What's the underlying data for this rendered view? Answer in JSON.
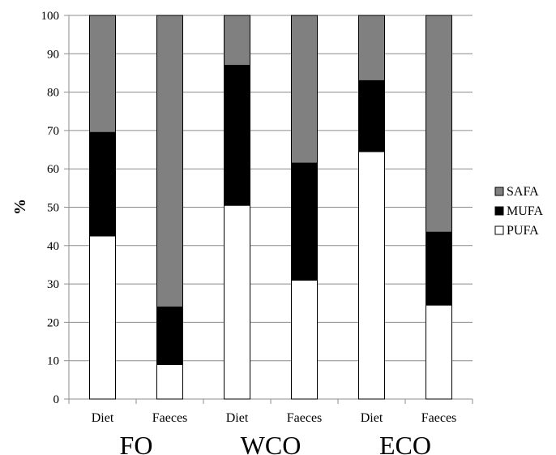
{
  "chart_data": {
    "type": "bar",
    "stacked": true,
    "categories": [
      "Diet",
      "Faeces",
      "Diet",
      "Faeces",
      "Diet",
      "Faeces"
    ],
    "groups": [
      "FO",
      "WCO",
      "ECO"
    ],
    "ylabel": "%",
    "ylim": [
      0,
      100
    ],
    "yticks": [
      0,
      10,
      20,
      30,
      40,
      50,
      60,
      70,
      80,
      90,
      100
    ],
    "grid": true,
    "legend_position": "right",
    "series": [
      {
        "name": "PUFA",
        "color": "#ffffff",
        "values": [
          42.5,
          9,
          50.5,
          31,
          64.5,
          24.5
        ]
      },
      {
        "name": "MUFA",
        "color": "#000000",
        "values": [
          27,
          15,
          36.5,
          30.5,
          18.5,
          19
        ]
      },
      {
        "name": "SAFA",
        "color": "#808080",
        "values": [
          30.5,
          76,
          13,
          38.5,
          17,
          56.5
        ]
      }
    ],
    "legend_order": [
      "SAFA",
      "MUFA",
      "PUFA"
    ]
  }
}
